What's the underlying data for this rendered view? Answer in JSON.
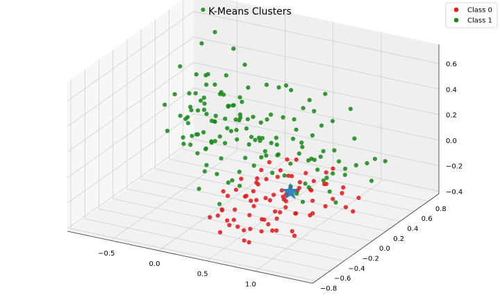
{
  "chart_data": {
    "type": "scatter",
    "projection": "3d",
    "title": "K-Means Clusters",
    "xlabel": "",
    "ylabel": "",
    "zlabel": "",
    "grid": true,
    "legend_position": "top-right",
    "xlim": [
      -0.95,
      1.6
    ],
    "ylim": [
      -0.85,
      0.95
    ],
    "zlim": [
      -0.42,
      0.75
    ],
    "x_ticks": [
      "−0.5",
      "0.0",
      "0.5",
      "1.0"
    ],
    "x_tick_values": [
      -0.5,
      0.0,
      0.5,
      1.0
    ],
    "y_ticks": [
      "−0.8",
      "−0.6",
      "−0.4",
      "−0.2",
      "0.0",
      "0.2",
      "0.4",
      "0.6",
      "0.8"
    ],
    "y_tick_values": [
      -0.8,
      -0.6,
      -0.4,
      -0.2,
      0.0,
      0.2,
      0.4,
      0.6,
      0.8
    ],
    "z_ticks": [
      "−0.4",
      "−0.2",
      "0.0",
      "0.2",
      "0.4",
      "0.6"
    ],
    "z_tick_values": [
      -0.4,
      -0.2,
      0.0,
      0.2,
      0.4,
      0.6
    ],
    "series": [
      {
        "name": "Class 0",
        "color": "#e41a1c",
        "points": [
          [
            0.52,
            -0.25,
            -0.18
          ],
          [
            0.61,
            -0.1,
            -0.22
          ],
          [
            0.71,
            -0.32,
            -0.27
          ],
          [
            0.45,
            -0.05,
            -0.14
          ],
          [
            0.82,
            -0.2,
            -0.12
          ],
          [
            0.9,
            -0.4,
            -0.2
          ],
          [
            0.39,
            -0.3,
            -0.25
          ],
          [
            0.58,
            0.05,
            -0.1
          ],
          [
            0.66,
            -0.45,
            -0.3
          ],
          [
            0.95,
            -0.15,
            -0.05
          ],
          [
            1.02,
            -0.3,
            -0.18
          ],
          [
            0.75,
            0.1,
            -0.2
          ],
          [
            0.48,
            -0.5,
            -0.28
          ],
          [
            0.85,
            -0.55,
            -0.25
          ],
          [
            0.62,
            -0.35,
            -0.05
          ],
          [
            0.55,
            0.15,
            -0.25
          ],
          [
            1.1,
            -0.2,
            -0.22
          ],
          [
            0.7,
            0.0,
            -0.3
          ],
          [
            0.4,
            -0.15,
            -0.2
          ],
          [
            0.78,
            -0.28,
            -0.08
          ],
          [
            0.93,
            0.05,
            -0.15
          ],
          [
            0.33,
            -0.4,
            -0.22
          ],
          [
            0.6,
            -0.6,
            -0.18
          ],
          [
            0.88,
            -0.1,
            -0.28
          ],
          [
            1.05,
            0.1,
            -0.1
          ],
          [
            0.5,
            0.2,
            -0.12
          ],
          [
            0.68,
            -0.22,
            -0.35
          ],
          [
            0.97,
            -0.45,
            -0.12
          ],
          [
            0.44,
            -0.55,
            -0.15
          ],
          [
            0.81,
            0.2,
            -0.22
          ],
          [
            0.28,
            -0.25,
            -0.18
          ],
          [
            0.63,
            -0.18,
            -0.02
          ],
          [
            0.74,
            -0.65,
            -0.22
          ],
          [
            1.15,
            -0.05,
            -0.2
          ],
          [
            0.57,
            -0.4,
            -0.08
          ],
          [
            0.86,
            -0.35,
            -0.32
          ],
          [
            0.36,
            0.05,
            -0.18
          ],
          [
            0.92,
            0.25,
            -0.18
          ],
          [
            0.53,
            -0.7,
            -0.25
          ],
          [
            1.2,
            -0.3,
            -0.15
          ],
          [
            0.69,
            0.3,
            -0.15
          ],
          [
            0.47,
            -0.2,
            -0.32
          ],
          [
            0.8,
            -0.05,
            -0.02
          ],
          [
            1.0,
            -0.6,
            -0.2
          ],
          [
            0.42,
            0.15,
            -0.05
          ],
          [
            0.72,
            -0.48,
            -0.1
          ],
          [
            0.59,
            0.0,
            -0.35
          ],
          [
            0.87,
            0.15,
            -0.28
          ],
          [
            1.25,
            0.05,
            -0.12
          ],
          [
            0.31,
            -0.1,
            -0.1
          ],
          [
            0.64,
            -0.75,
            -0.12
          ],
          [
            0.95,
            -0.25,
            -0.35
          ],
          [
            0.51,
            0.3,
            -0.2
          ],
          [
            0.77,
            -0.12,
            -0.18
          ],
          [
            1.08,
            0.3,
            -0.2
          ],
          [
            0.38,
            -0.45,
            -0.05
          ],
          [
            0.83,
            -0.7,
            -0.28
          ],
          [
            0.65,
            0.22,
            -0.02
          ],
          [
            1.3,
            -0.15,
            -0.08
          ],
          [
            0.55,
            -0.08,
            -0.22
          ],
          [
            0.25,
            -0.35,
            -0.3
          ],
          [
            0.9,
            0.4,
            -0.12
          ],
          [
            0.73,
            -0.38,
            -0.24
          ],
          [
            0.46,
            0.35,
            -0.1
          ],
          [
            1.12,
            -0.45,
            -0.28
          ],
          [
            0.6,
            -0.28,
            -0.15
          ],
          [
            0.99,
            0.18,
            -0.05
          ],
          [
            0.35,
            -0.6,
            -0.2
          ],
          [
            0.79,
            0.08,
            -0.12
          ],
          [
            1.35,
            0.15,
            -0.18
          ],
          [
            0.49,
            -0.12,
            -0.06
          ],
          [
            0.67,
            -0.55,
            -0.35
          ],
          [
            0.22,
            -0.05,
            -0.22
          ],
          [
            1.18,
            0.2,
            -0.3
          ],
          [
            0.85,
            -0.2,
            -0.15
          ],
          [
            0.42,
            -0.3,
            -0.38
          ],
          [
            0.7,
            0.4,
            -0.25
          ],
          [
            0.96,
            -0.35,
            -0.02
          ],
          [
            0.3,
            0.2,
            -0.15
          ],
          [
            1.4,
            0.0,
            -0.22
          ]
        ]
      },
      {
        "name": "Class 1",
        "color": "#1a8a1a",
        "points": [
          [
            -0.55,
            0.55,
            0.05
          ],
          [
            -0.48,
            0.6,
            -0.05
          ],
          [
            -0.62,
            0.45,
            0.1
          ],
          [
            -0.4,
            0.5,
            0.0
          ],
          [
            -0.58,
            0.7,
            -0.1
          ],
          [
            -0.35,
            0.62,
            0.08
          ],
          [
            -0.66,
            0.58,
            0.15
          ],
          [
            -0.52,
            0.4,
            -0.08
          ],
          [
            -0.44,
            0.75,
            0.02
          ],
          [
            -0.7,
            0.52,
            -0.02
          ],
          [
            -0.3,
            0.55,
            0.12
          ],
          [
            -0.6,
            0.65,
            0.2
          ],
          [
            -0.5,
            0.48,
            0.18
          ],
          [
            -0.38,
            0.42,
            -0.12
          ],
          [
            -0.68,
            0.68,
            0.05
          ],
          [
            -0.46,
            0.58,
            0.25
          ],
          [
            -0.57,
            0.35,
            0.02
          ],
          [
            -0.33,
            0.7,
            -0.05
          ],
          [
            -0.64,
            0.5,
            -0.15
          ],
          [
            -0.42,
            0.65,
            0.15
          ],
          [
            -0.54,
            0.78,
            0.1
          ],
          [
            -0.28,
            0.48,
            0.05
          ],
          [
            -0.72,
            0.6,
            0.0
          ],
          [
            -0.49,
            0.38,
            0.12
          ],
          [
            -0.36,
            0.8,
            0.08
          ],
          [
            -0.61,
            0.42,
            0.22
          ],
          [
            -0.45,
            0.52,
            -0.18
          ],
          [
            -0.56,
            0.62,
            0.3
          ],
          [
            -0.25,
            0.6,
            -0.08
          ],
          [
            -0.67,
            0.75,
            -0.08
          ],
          [
            -0.4,
            0.35,
            0.2
          ],
          [
            -0.53,
            0.55,
            -0.25
          ],
          [
            -0.31,
            0.45,
            0.25
          ],
          [
            -0.63,
            0.32,
            0.08
          ],
          [
            -0.47,
            0.85,
            -0.02
          ],
          [
            -0.58,
            0.48,
            0.35
          ],
          [
            -0.22,
            0.52,
            0.15
          ],
          [
            -0.69,
            0.45,
            -0.2
          ],
          [
            -0.43,
            0.7,
            0.28
          ],
          [
            -0.51,
            0.3,
            -0.12
          ],
          [
            -0.2,
            0.4,
            0.02
          ],
          [
            -0.1,
            0.45,
            0.1
          ],
          [
            0.0,
            0.4,
            0.05
          ],
          [
            -0.15,
            0.3,
            -0.05
          ],
          [
            0.05,
            0.35,
            0.15
          ],
          [
            -0.05,
            0.25,
            0.08
          ],
          [
            0.1,
            0.3,
            -0.02
          ],
          [
            -0.12,
            0.5,
            0.2
          ],
          [
            0.15,
            0.4,
            0.12
          ],
          [
            -0.18,
            0.2,
            0.0
          ],
          [
            0.08,
            0.2,
            0.25
          ],
          [
            0.2,
            0.25,
            0.05
          ],
          [
            -0.08,
            0.15,
            -0.1
          ],
          [
            0.25,
            0.35,
            0.18
          ],
          [
            0.12,
            0.1,
            0.1
          ],
          [
            0.3,
            0.2,
            -0.05
          ],
          [
            -0.02,
            0.05,
            0.12
          ],
          [
            0.18,
            0.05,
            0.28
          ],
          [
            0.35,
            0.1,
            0.15
          ],
          [
            0.28,
            0.0,
            0.02
          ],
          [
            0.4,
            0.2,
            0.3
          ],
          [
            0.45,
            0.05,
            0.08
          ],
          [
            0.38,
            -0.05,
            0.22
          ],
          [
            0.5,
            0.15,
            0.1
          ],
          [
            0.55,
            0.0,
            0.18
          ],
          [
            0.6,
            0.1,
            0.35
          ],
          [
            0.48,
            -0.15,
            0.05
          ],
          [
            0.65,
            -0.05,
            0.12
          ],
          [
            0.7,
            0.15,
            0.25
          ],
          [
            0.58,
            -0.2,
            0.28
          ],
          [
            0.75,
            0.0,
            0.05
          ],
          [
            0.8,
            0.1,
            0.15
          ],
          [
            0.68,
            -0.25,
            0.2
          ],
          [
            0.85,
            -0.1,
            0.3
          ],
          [
            0.9,
            0.05,
            0.08
          ],
          [
            0.78,
            -0.3,
            0.1
          ],
          [
            0.95,
            -0.15,
            0.22
          ],
          [
            1.0,
            0.0,
            0.12
          ],
          [
            0.88,
            -0.35,
            0.28
          ],
          [
            1.05,
            -0.2,
            0.02
          ],
          [
            1.1,
            -0.05,
            0.18
          ],
          [
            0.98,
            -0.4,
            0.15
          ],
          [
            1.15,
            -0.25,
            0.25
          ],
          [
            1.2,
            -0.1,
            0.05
          ],
          [
            1.08,
            -0.45,
            0.1
          ],
          [
            1.25,
            -0.3,
            0.2
          ],
          [
            1.3,
            -0.15,
            0.12
          ],
          [
            1.18,
            -0.5,
            0.08
          ],
          [
            1.35,
            -0.35,
            0.15
          ],
          [
            1.4,
            -0.2,
            0.25
          ],
          [
            1.28,
            -0.55,
            0.05
          ],
          [
            1.45,
            -0.4,
            0.1
          ],
          [
            1.5,
            -0.25,
            0.18
          ],
          [
            1.38,
            -0.6,
            0.2
          ],
          [
            1.55,
            -0.45,
            0.05
          ],
          [
            0.3,
            0.45,
            0.4
          ],
          [
            0.1,
            0.55,
            0.35
          ],
          [
            -0.2,
            0.65,
            0.42
          ],
          [
            0.5,
            0.35,
            0.45
          ],
          [
            0.7,
            0.25,
            0.38
          ],
          [
            0.2,
            0.15,
            0.5
          ],
          [
            -0.35,
            0.3,
            0.45
          ],
          [
            0.85,
            0.2,
            0.4
          ],
          [
            1.0,
            0.1,
            0.35
          ],
          [
            -0.6,
            0.2,
            0.3
          ],
          [
            -0.8,
            0.55,
            0.35
          ],
          [
            -0.75,
            0.3,
            -0.05
          ],
          [
            -0.85,
            0.4,
            0.1
          ],
          [
            0.4,
            -0.35,
            0.0
          ],
          [
            0.25,
            -0.2,
            -0.1
          ],
          [
            0.15,
            -0.4,
            0.05
          ],
          [
            0.05,
            -0.25,
            0.15
          ],
          [
            -0.05,
            -0.1,
            -0.05
          ],
          [
            0.35,
            -0.5,
            0.1
          ],
          [
            0.55,
            -0.45,
            0.02
          ],
          [
            0.45,
            -0.6,
            -0.08
          ],
          [
            0.62,
            -0.55,
            0.18
          ],
          [
            0.2,
            -0.55,
            -0.02
          ],
          [
            -0.1,
            0.1,
            0.25
          ],
          [
            -0.25,
            0.05,
            0.1
          ],
          [
            -0.3,
            0.2,
            0.05
          ],
          [
            -0.45,
            0.15,
            0.15
          ],
          [
            -0.4,
            0.25,
            -0.15
          ],
          [
            -0.55,
            0.25,
            -0.05
          ],
          [
            0.02,
            0.6,
            -0.1
          ],
          [
            -0.15,
            0.7,
            0.0
          ],
          [
            0.2,
            0.55,
            -0.05
          ],
          [
            0.35,
            0.6,
            0.1
          ],
          [
            0.5,
            0.5,
            -0.02
          ],
          [
            0.65,
            0.45,
            0.08
          ],
          [
            0.8,
            0.4,
            0.0
          ],
          [
            0.95,
            0.35,
            0.05
          ],
          [
            1.1,
            0.3,
            -0.05
          ],
          [
            1.25,
            0.25,
            0.02
          ],
          [
            1.4,
            0.2,
            0.08
          ],
          [
            1.52,
            0.1,
            0.0
          ],
          [
            -0.62,
            0.8,
            0.55
          ],
          [
            -0.78,
            0.85,
            0.68
          ],
          [
            -0.5,
            0.9,
            0.4
          ],
          [
            -0.7,
            0.72,
            0.48
          ],
          [
            0.12,
            0.8,
            0.25
          ],
          [
            0.4,
            0.75,
            0.2
          ],
          [
            0.75,
            0.6,
            0.15
          ],
          [
            1.05,
            0.5,
            0.1
          ],
          [
            1.3,
            0.45,
            0.0
          ],
          [
            1.48,
            0.35,
            0.05
          ],
          [
            0.6,
            0.7,
            0.3
          ],
          [
            0.9,
            0.65,
            0.25
          ]
        ]
      }
    ],
    "centroids": [
      {
        "name": "centroid",
        "marker": "star",
        "color": "#1f77b4",
        "point": [
          0.88,
          -0.18,
          -0.08
        ]
      }
    ]
  },
  "legend": {
    "entries": [
      {
        "label": "Class 0",
        "color": "#e41a1c"
      },
      {
        "label": "Class 1",
        "color": "#1a8a1a"
      }
    ]
  }
}
